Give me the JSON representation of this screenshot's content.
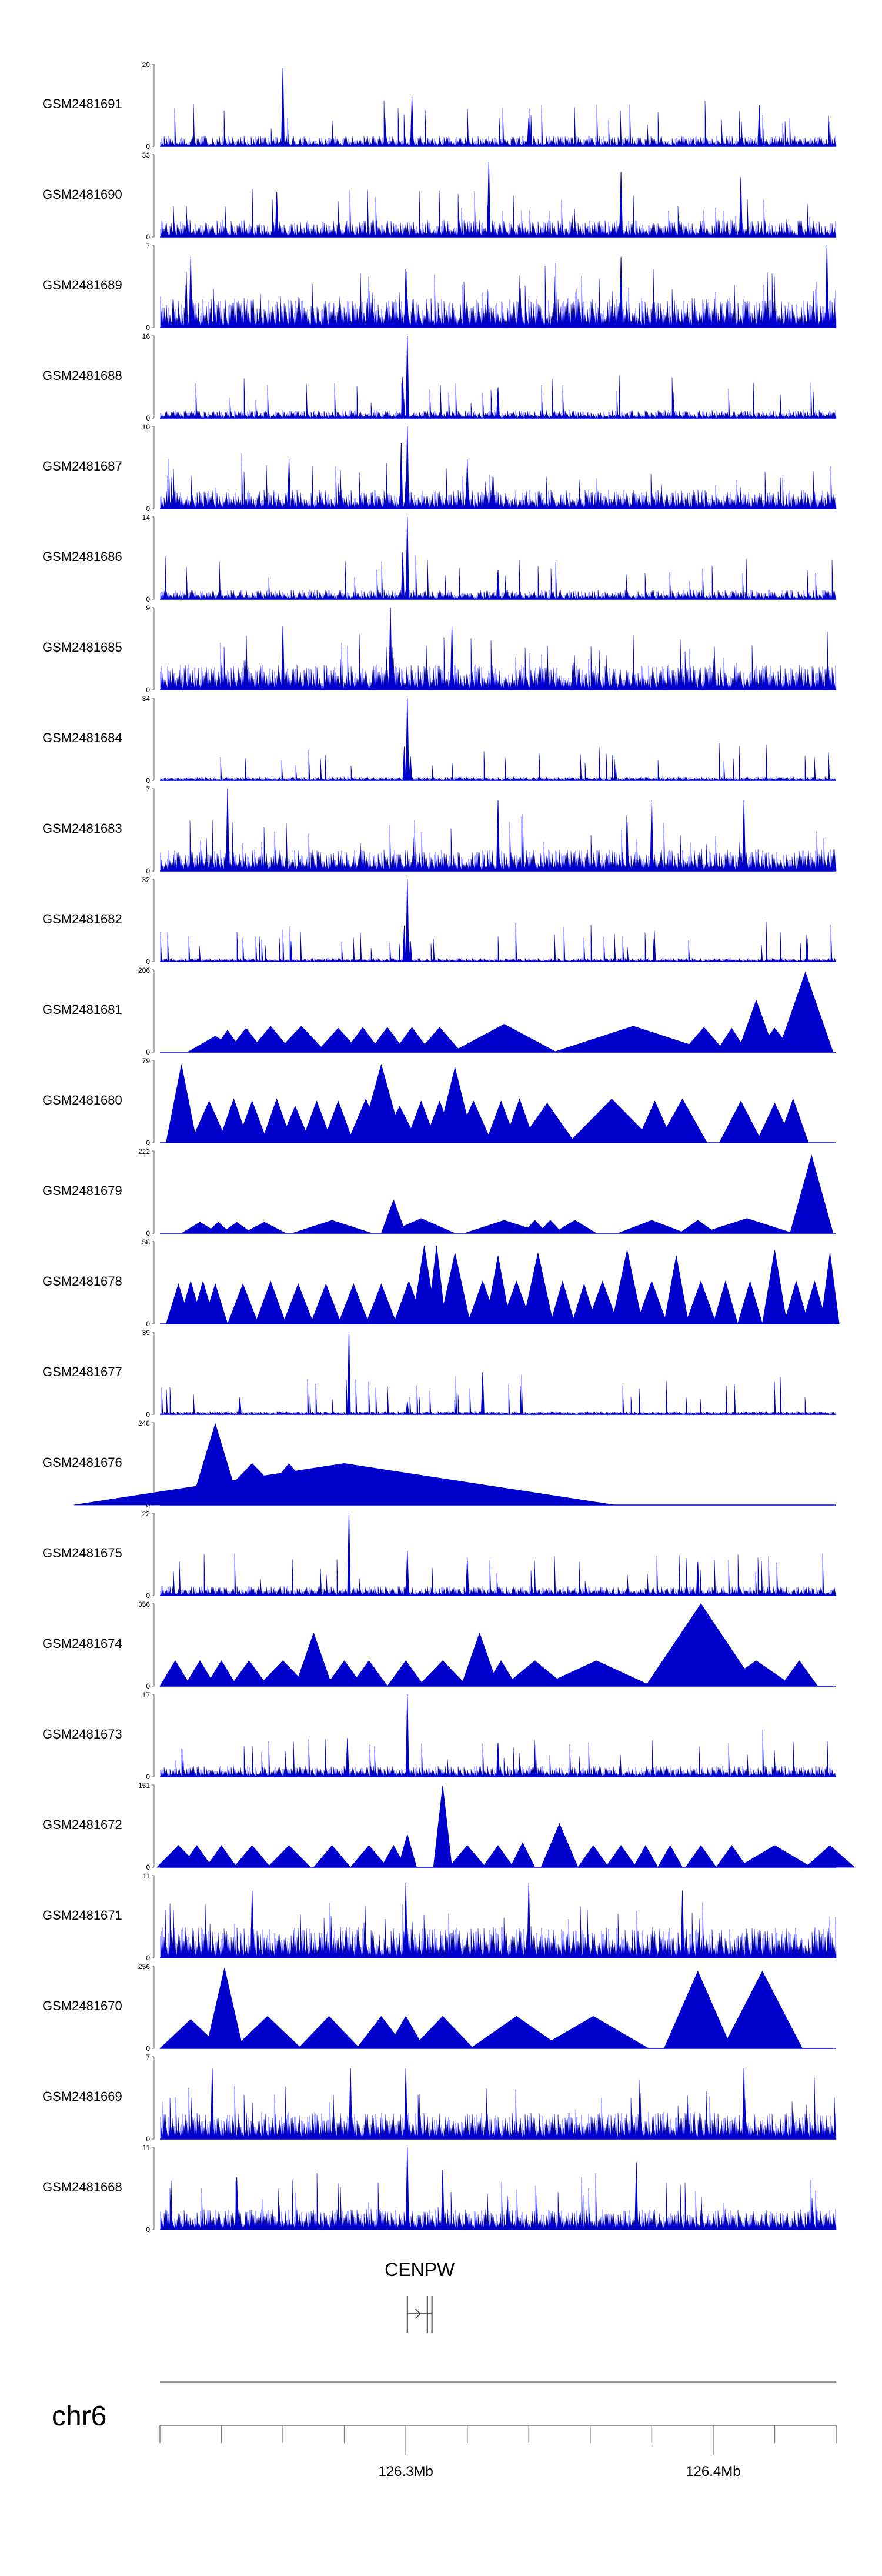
{
  "chart_data": {
    "type": "area",
    "title": "",
    "chromosome": "chr6",
    "x_range_bp": [
      126220000,
      126440000
    ],
    "x_ticks": [
      {
        "pos": 126220000,
        "label": ""
      },
      {
        "pos": 126240000,
        "label": ""
      },
      {
        "pos": 126260000,
        "label": ""
      },
      {
        "pos": 126280000,
        "label": ""
      },
      {
        "pos": 126300000,
        "label": "126.3Mb"
      },
      {
        "pos": 126320000,
        "label": ""
      },
      {
        "pos": 126340000,
        "label": ""
      },
      {
        "pos": 126360000,
        "label": ""
      },
      {
        "pos": 126380000,
        "label": ""
      },
      {
        "pos": 126400000,
        "label": "126.4Mb"
      },
      {
        "pos": 126420000,
        "label": ""
      },
      {
        "pos": 126440000,
        "label": ""
      }
    ],
    "color": "#0000cc",
    "gene": {
      "name": "CENPW",
      "start": 126300500,
      "end": 126308500,
      "strand": "+"
    },
    "series": [
      {
        "name": "GSM2481691",
        "ymax": 20,
        "style": "dense",
        "baseline": 2.2,
        "peaks": [
          [
            126260000,
            19
          ],
          [
            126302000,
            12
          ],
          [
            126415000,
            10
          ],
          [
            126340000,
            7
          ]
        ]
      },
      {
        "name": "GSM2481690",
        "ymax": 33,
        "style": "dense",
        "baseline": 6,
        "peaks": [
          [
            126327000,
            30
          ],
          [
            126370000,
            26
          ],
          [
            126409000,
            24
          ],
          [
            126258000,
            18
          ]
        ]
      },
      {
        "name": "GSM2481689",
        "ymax": 7,
        "style": "dense",
        "baseline": 2.2,
        "peaks": [
          [
            126437000,
            7
          ],
          [
            126230000,
            6
          ],
          [
            126370000,
            6
          ],
          [
            126300000,
            5
          ]
        ]
      },
      {
        "name": "GSM2481688",
        "ymax": 16,
        "style": "dense",
        "baseline": 1.4,
        "peaks": [
          [
            126300500,
            16
          ],
          [
            126299000,
            8
          ],
          [
            126330000,
            6
          ]
        ]
      },
      {
        "name": "GSM2481687",
        "ymax": 10,
        "style": "dense",
        "baseline": 2,
        "peaks": [
          [
            126300500,
            10
          ],
          [
            126298500,
            8
          ],
          [
            126320000,
            6
          ],
          [
            126262000,
            6
          ]
        ]
      },
      {
        "name": "GSM2481686",
        "ymax": 14,
        "style": "dense",
        "baseline": 1.4,
        "peaks": [
          [
            126300500,
            14
          ],
          [
            126299000,
            8
          ],
          [
            126330000,
            5
          ]
        ]
      },
      {
        "name": "GSM2481685",
        "ymax": 9,
        "style": "dense",
        "baseline": 2.4,
        "peaks": [
          [
            126295000,
            9
          ],
          [
            126315000,
            7
          ],
          [
            126260000,
            7
          ]
        ]
      },
      {
        "name": "GSM2481684",
        "ymax": 34,
        "style": "dense",
        "baseline": 1.4,
        "peaks": [
          [
            126300500,
            34
          ],
          [
            126299500,
            14
          ],
          [
            126301500,
            10
          ]
        ]
      },
      {
        "name": "GSM2481683",
        "ymax": 7,
        "style": "dense",
        "baseline": 1.6,
        "peaks": [
          [
            126242000,
            7
          ],
          [
            126330000,
            6
          ],
          [
            126410000,
            6
          ],
          [
            126380000,
            6
          ]
        ]
      },
      {
        "name": "GSM2481682",
        "ymax": 32,
        "style": "dense",
        "baseline": 1.2,
        "peaks": [
          [
            126300500,
            32
          ],
          [
            126299500,
            14
          ],
          [
            126301500,
            8
          ]
        ]
      },
      {
        "name": "GSM2481681",
        "ymax": 206,
        "style": "triangles",
        "peaks": [
          [
            126238000,
            40,
            9000
          ],
          [
            126242000,
            55,
            5000
          ],
          [
            126248000,
            60,
            6000
          ],
          [
            126256000,
            65,
            7000
          ],
          [
            126266000,
            65,
            8000
          ],
          [
            126278000,
            60,
            7000
          ],
          [
            126286000,
            62,
            6000
          ],
          [
            126294000,
            62,
            6000
          ],
          [
            126302000,
            62,
            6000
          ],
          [
            126311000,
            62,
            7000
          ],
          [
            126332000,
            70,
            17000
          ],
          [
            126374000,
            65,
            26000
          ],
          [
            126397000,
            62,
            7000
          ],
          [
            126406000,
            60,
            5000
          ],
          [
            126414000,
            130,
            6000
          ],
          [
            126420000,
            60,
            6000
          ],
          [
            126426000,
            85,
            6000
          ],
          [
            126430000,
            200,
            9000
          ]
        ]
      },
      {
        "name": "GSM2481680",
        "ymax": 79,
        "style": "triangles",
        "peaks": [
          [
            126227000,
            75,
            5000
          ],
          [
            126236000,
            40,
            6000
          ],
          [
            126244000,
            42,
            5000
          ],
          [
            126250000,
            40,
            5000
          ],
          [
            126258000,
            42,
            5000
          ],
          [
            126264000,
            35,
            5000
          ],
          [
            126271000,
            40,
            5000
          ],
          [
            126278000,
            40,
            5000
          ],
          [
            126287000,
            42,
            6000
          ],
          [
            126292000,
            75,
            7000
          ],
          [
            126298000,
            35,
            6000
          ],
          [
            126305000,
            40,
            5000
          ],
          [
            126311000,
            40,
            5000
          ],
          [
            126316000,
            72,
            6000
          ],
          [
            126322000,
            40,
            6000
          ],
          [
            126331000,
            40,
            5000
          ],
          [
            126337000,
            42,
            5000
          ],
          [
            126346000,
            38,
            9000
          ],
          [
            126367000,
            42,
            14000
          ],
          [
            126381000,
            40,
            6000
          ],
          [
            126390000,
            42,
            8000
          ],
          [
            126409000,
            40,
            7000
          ],
          [
            126420000,
            38,
            6000
          ],
          [
            126426000,
            42,
            5000
          ]
        ]
      },
      {
        "name": "GSM2481679",
        "ymax": 222,
        "style": "triangles",
        "peaks": [
          [
            126233000,
            30,
            6000
          ],
          [
            126239000,
            30,
            4000
          ],
          [
            126245000,
            30,
            5000
          ],
          [
            126254000,
            30,
            7000
          ],
          [
            126276000,
            35,
            13000
          ],
          [
            126296000,
            90,
            4000
          ],
          [
            126305000,
            40,
            11000
          ],
          [
            126332000,
            35,
            13000
          ],
          [
            126342000,
            35,
            4000
          ],
          [
            126347000,
            35,
            4000
          ],
          [
            126355000,
            35,
            7000
          ],
          [
            126380000,
            35,
            11000
          ],
          [
            126395000,
            35,
            6000
          ],
          [
            126411000,
            40,
            15000
          ],
          [
            126432000,
            210,
            7000
          ]
        ]
      },
      {
        "name": "GSM2481678",
        "ymax": 58,
        "style": "triangles",
        "peaks": [
          [
            126226000,
            28,
            4000
          ],
          [
            126230000,
            30,
            4000
          ],
          [
            126234000,
            30,
            4000
          ],
          [
            126238000,
            28,
            4000
          ],
          [
            126247000,
            28,
            5000
          ],
          [
            126256000,
            30,
            5000
          ],
          [
            126265000,
            28,
            5000
          ],
          [
            126274000,
            28,
            5000
          ],
          [
            126283000,
            28,
            5000
          ],
          [
            126292000,
            28,
            5000
          ],
          [
            126301000,
            30,
            5000
          ],
          [
            126306000,
            55,
            4000
          ],
          [
            126310000,
            55,
            3000
          ],
          [
            126316000,
            50,
            5000
          ],
          [
            126325000,
            30,
            5000
          ],
          [
            126330000,
            48,
            4000
          ],
          [
            126336000,
            30,
            5000
          ],
          [
            126343000,
            50,
            5000
          ],
          [
            126351000,
            30,
            4000
          ],
          [
            126358000,
            28,
            4000
          ],
          [
            126364000,
            30,
            5000
          ],
          [
            126372000,
            52,
            5000
          ],
          [
            126380000,
            30,
            5000
          ],
          [
            126388000,
            48,
            4000
          ],
          [
            126396000,
            30,
            5000
          ],
          [
            126404000,
            30,
            4000
          ],
          [
            126412000,
            30,
            4000
          ],
          [
            126420000,
            52,
            4000
          ],
          [
            126427000,
            30,
            4000
          ],
          [
            126433000,
            30,
            4000
          ],
          [
            126438000,
            50,
            3000
          ]
        ]
      },
      {
        "name": "GSM2481677",
        "ymax": 39,
        "style": "dense",
        "baseline": 1.4,
        "peaks": [
          [
            126281500,
            39
          ],
          [
            126325000,
            20
          ],
          [
            126246000,
            8
          ],
          [
            126300500,
            6
          ]
        ]
      },
      {
        "name": "GSM2481676",
        "ymax": 248,
        "style": "triangles",
        "peaks": [
          [
            126238000,
            245,
            8000
          ],
          [
            126250000,
            125,
            13000
          ],
          [
            126262000,
            125,
            11000
          ],
          [
            126280000,
            125,
            88000
          ]
        ]
      },
      {
        "name": "GSM2481675",
        "ymax": 22,
        "style": "dense",
        "baseline": 2.2,
        "peaks": [
          [
            126281500,
            22
          ],
          [
            126300500,
            12
          ],
          [
            126320000,
            10
          ],
          [
            126395000,
            9
          ]
        ]
      },
      {
        "name": "GSM2481674",
        "ymax": 356,
        "style": "triangles",
        "peaks": [
          [
            126225000,
            110,
            5000
          ],
          [
            126233000,
            110,
            5000
          ],
          [
            126240000,
            110,
            5000
          ],
          [
            126249000,
            110,
            6000
          ],
          [
            126260000,
            110,
            8000
          ],
          [
            126270000,
            230,
            6000
          ],
          [
            126280000,
            110,
            6000
          ],
          [
            126288000,
            110,
            6000
          ],
          [
            126300000,
            110,
            6000
          ],
          [
            126312000,
            110,
            8000
          ],
          [
            126324000,
            230,
            6000
          ],
          [
            126331000,
            110,
            5000
          ],
          [
            126342000,
            110,
            10000
          ],
          [
            126362000,
            110,
            18000
          ],
          [
            126396000,
            356,
            18000
          ],
          [
            126404000,
            110,
            6000
          ],
          [
            126414000,
            110,
            12000
          ],
          [
            126428000,
            110,
            6000
          ]
        ]
      },
      {
        "name": "GSM2481673",
        "ymax": 17,
        "style": "dense",
        "baseline": 2,
        "peaks": [
          [
            126300500,
            17
          ],
          [
            126281000,
            8
          ],
          [
            126330000,
            7
          ]
        ]
      },
      {
        "name": "GSM2481672",
        "ymax": 151,
        "style": "triangles",
        "peaks": [
          [
            126226000,
            40,
            7000
          ],
          [
            126232000,
            40,
            5000
          ],
          [
            126240000,
            40,
            5000
          ],
          [
            126250000,
            40,
            6000
          ],
          [
            126262000,
            40,
            7000
          ],
          [
            126276000,
            40,
            6000
          ],
          [
            126288000,
            40,
            6000
          ],
          [
            126296000,
            40,
            4000
          ],
          [
            126300500,
            60,
            3000
          ],
          [
            126312000,
            150,
            3000
          ],
          [
            126320000,
            40,
            6000
          ],
          [
            126330000,
            40,
            5000
          ],
          [
            126338000,
            45,
            4000
          ],
          [
            126350000,
            80,
            6000
          ],
          [
            126361000,
            40,
            5000
          ],
          [
            126370000,
            40,
            5000
          ],
          [
            126378000,
            40,
            4000
          ],
          [
            126386000,
            40,
            4000
          ],
          [
            126396000,
            40,
            5000
          ],
          [
            126406000,
            40,
            5000
          ],
          [
            126420000,
            40,
            12000
          ],
          [
            126438000,
            40,
            8000
          ]
        ]
      },
      {
        "name": "GSM2481671",
        "ymax": 11,
        "style": "dense",
        "baseline": 3.6,
        "peaks": [
          [
            126300000,
            10
          ],
          [
            126340000,
            10
          ],
          [
            126390000,
            9
          ],
          [
            126250000,
            9
          ]
        ]
      },
      {
        "name": "GSM2481670",
        "ymax": 256,
        "style": "triangles",
        "peaks": [
          [
            126230000,
            90,
            10000
          ],
          [
            126241000,
            250,
            6000
          ],
          [
            126255000,
            100,
            11000
          ],
          [
            126275000,
            100,
            10000
          ],
          [
            126292000,
            100,
            8000
          ],
          [
            126300000,
            100,
            6000
          ],
          [
            126312000,
            100,
            10000
          ],
          [
            126336000,
            100,
            15000
          ],
          [
            126361000,
            100,
            18000
          ],
          [
            126395000,
            240,
            11000
          ],
          [
            126416000,
            240,
            13000
          ]
        ]
      },
      {
        "name": "GSM2481669",
        "ymax": 7,
        "style": "dense",
        "baseline": 2,
        "peaks": [
          [
            126300000,
            6
          ],
          [
            126282000,
            6
          ],
          [
            126237000,
            6
          ],
          [
            126410000,
            6
          ]
        ]
      },
      {
        "name": "GSM2481668",
        "ymax": 11,
        "style": "dense",
        "baseline": 2.4,
        "peaks": [
          [
            126300500,
            11
          ],
          [
            126375000,
            9
          ],
          [
            126312000,
            8
          ],
          [
            126245000,
            7
          ]
        ]
      }
    ]
  }
}
